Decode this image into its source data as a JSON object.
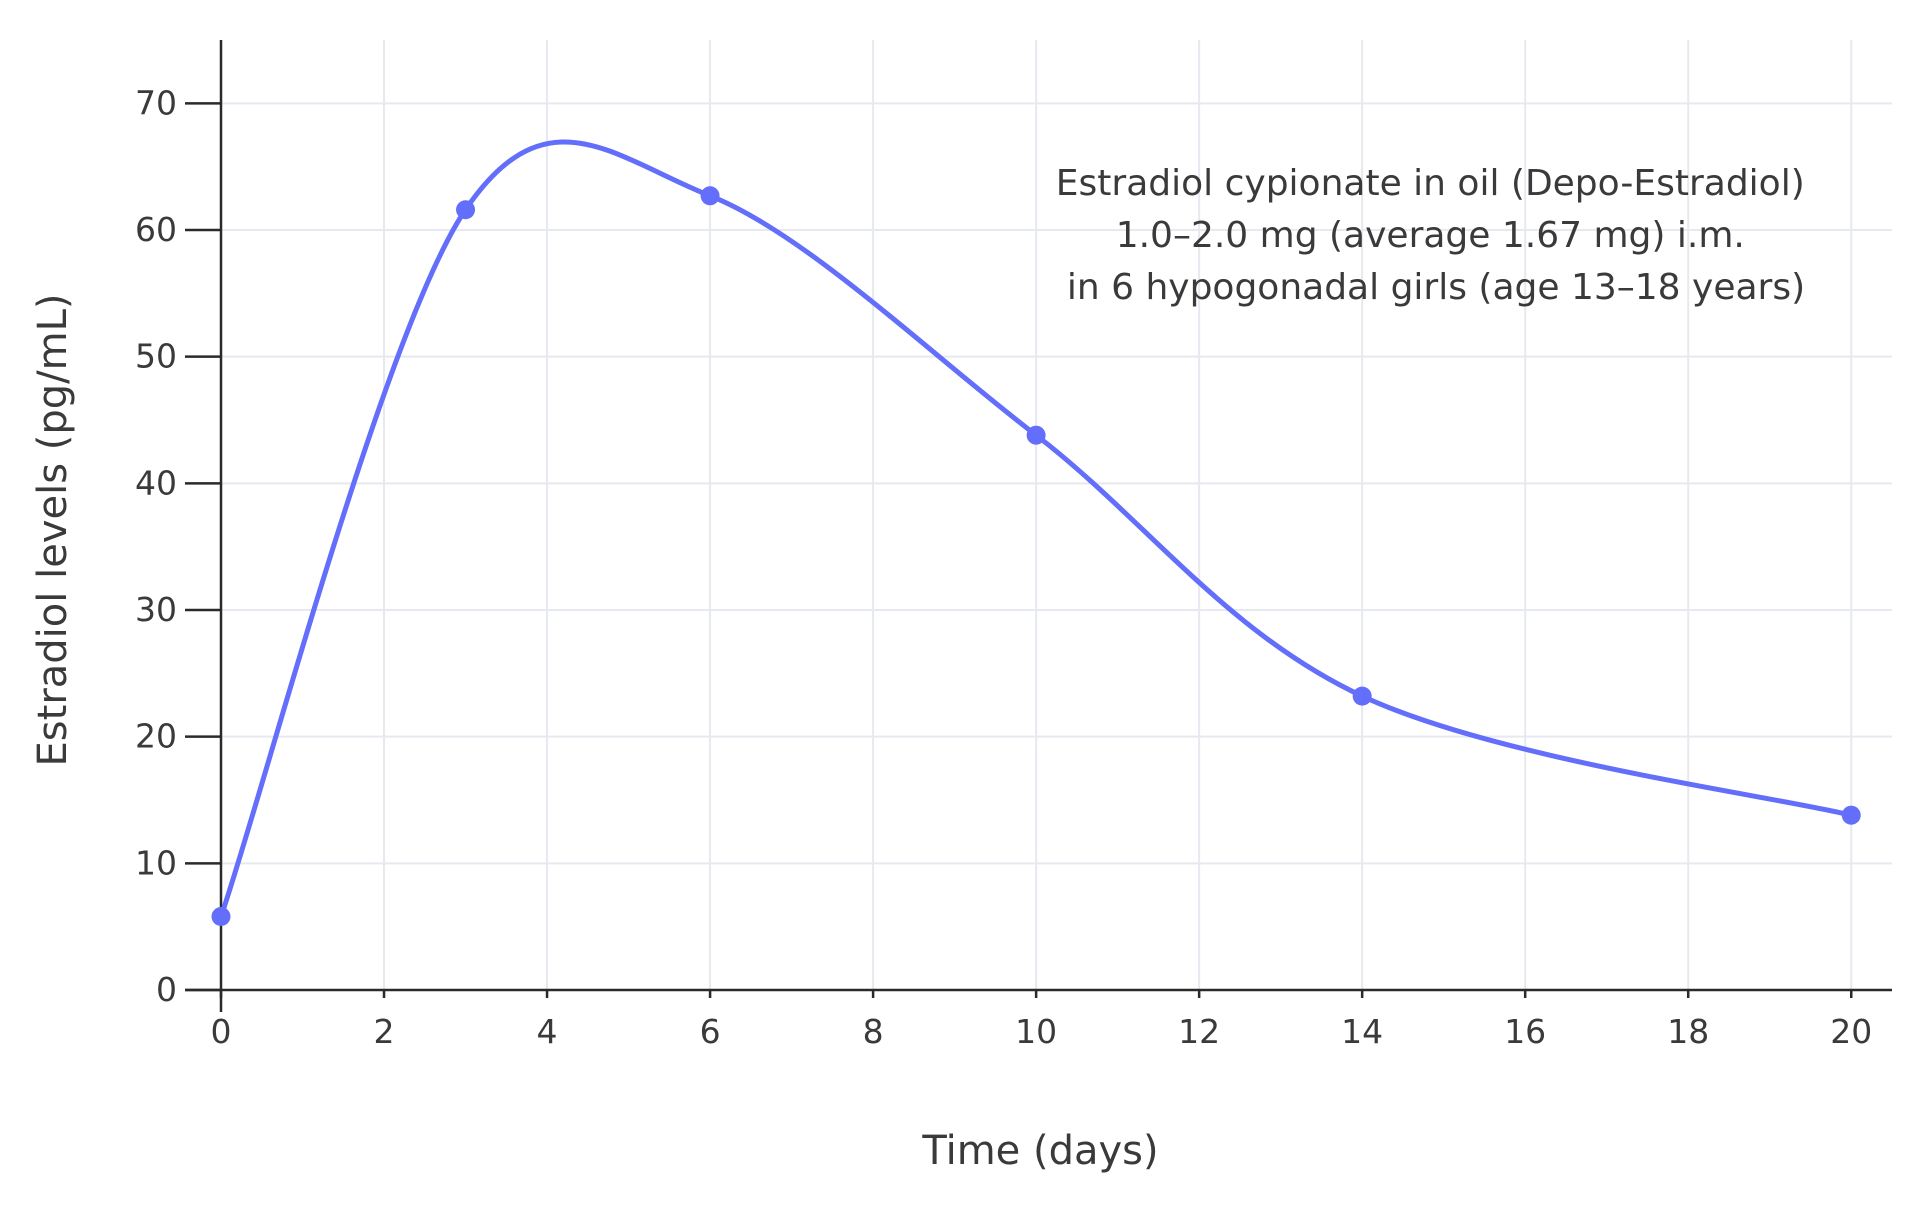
{
  "chart_data": {
    "type": "line",
    "title": "",
    "xlabel": "Time (days)",
    "ylabel": "Estradiol levels (pg/mL)",
    "xlim": [
      0,
      20.5
    ],
    "ylim": [
      0,
      75
    ],
    "x_ticks": [
      0,
      2,
      4,
      6,
      8,
      10,
      12,
      14,
      16,
      18,
      20
    ],
    "y_ticks": [
      0,
      10,
      20,
      30,
      40,
      50,
      60,
      70
    ],
    "grid": true,
    "legend": "none",
    "series": [
      {
        "color": "#636efa",
        "line_shape": "spline",
        "markers": true,
        "x": [
          0,
          3,
          6,
          10,
          14,
          20
        ],
        "y": [
          5.8,
          61.6,
          62.7,
          43.8,
          23.2,
          13.8
        ]
      }
    ],
    "annotation": {
      "lines": [
        "Estradiol cypionate in oil (Depo-Estradiol)",
        "1.0–2.0 mg (average 1.67 mg) i.m.",
        "in 6 hypogonadal girls (age 13–18 years)"
      ],
      "placement": "top-right"
    }
  }
}
